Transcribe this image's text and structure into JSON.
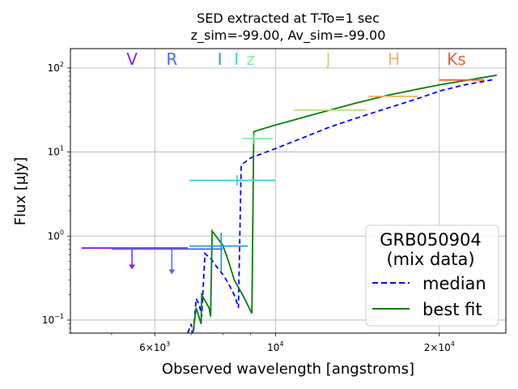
{
  "chart_data": {
    "type": "line",
    "title_line1": "SED extracted at T-To=1 sec",
    "title_line2": "z_sim=-99.00, Av_sim=-99.00",
    "xlabel": "Observed wavelength [angstroms]",
    "ylabel": "Flux [μJy]",
    "xscale": "log",
    "yscale": "log",
    "xlim": [
      4200,
      26500
    ],
    "ylim": [
      0.07,
      170
    ],
    "grid": true,
    "x_ticks": [
      {
        "value": 6000,
        "label": "6×10",
        "exp": "3"
      },
      {
        "value": 10000,
        "label": "10",
        "exp": "4"
      },
      {
        "value": 20000,
        "label": "2×10",
        "exp": "4"
      }
    ],
    "y_ticks": [
      {
        "value": 0.1,
        "label": "10",
        "exp": "−1"
      },
      {
        "value": 1,
        "label": "10",
        "exp": "0"
      },
      {
        "value": 10,
        "label": "10",
        "exp": "1"
      },
      {
        "value": 100,
        "label": "10",
        "exp": "2"
      }
    ],
    "bands": [
      {
        "name": "V",
        "x": 5450,
        "color": "#8a1ee6"
      },
      {
        "name": "R",
        "x": 6450,
        "color": "#4a6cf0"
      },
      {
        "name": "I",
        "x": 7900,
        "color": "#1aa0d8"
      },
      {
        "name": "I",
        "x": 8480,
        "color": "#3fd4c8"
      },
      {
        "name": "z",
        "x": 9000,
        "color": "#7ef0a8"
      },
      {
        "name": "J",
        "x": 12500,
        "color": "#b8e07a"
      },
      {
        "name": "H",
        "x": 16500,
        "color": "#f0b070"
      },
      {
        "name": "Ks",
        "x": 21500,
        "color": "#e8603a"
      }
    ],
    "upper_limits": [
      {
        "x": 5450,
        "xerr": [
          4400,
          6900
        ],
        "y": 0.72,
        "y_arrow_end": 0.4,
        "color": "#8a1ee6"
      },
      {
        "x": 6450,
        "xerr": [
          5000,
          8000
        ],
        "y": 0.7,
        "y_arrow_end": 0.35,
        "color": "#4a6cf0"
      }
    ],
    "detections": [
      {
        "x": 7950,
        "xerr": [
          6950,
          8900
        ],
        "y": 0.76,
        "yerr": [
          0.37,
          1.1
        ],
        "color": "#1aa0d8"
      },
      {
        "x": 8500,
        "xerr": [
          6950,
          10000
        ],
        "y": 4.6,
        "yerr": [
          4.0,
          5.3
        ],
        "color": "#3fd4c8"
      },
      {
        "x": 9100,
        "xerr": [
          8700,
          9900
        ],
        "y": 14.5,
        "yerr": [
          12.5,
          16.5
        ],
        "color": "#7ef0a8"
      },
      {
        "x": 12500,
        "xerr": [
          10800,
          14700
        ],
        "y": 31.5,
        "yerr": [
          31.5,
          31.5
        ],
        "color": "#b8e07a"
      },
      {
        "x": 16500,
        "xerr": [
          14800,
          18300
        ],
        "y": 46,
        "yerr": [
          46,
          46
        ],
        "color": "#f0b070"
      },
      {
        "x": 21500,
        "xerr": [
          20000,
          24200
        ],
        "y": 72,
        "yerr": [
          72,
          72
        ],
        "color": "#e8603a"
      }
    ],
    "legend": {
      "title_line1": "GRB050904",
      "title_line2": "(mix data)",
      "position": "lower-right",
      "entries": [
        {
          "label": "median",
          "style": "dashed",
          "color": "#0000ff"
        },
        {
          "label": "best fit",
          "style": "solid",
          "color": "#008000"
        }
      ]
    },
    "series": [
      {
        "name": "median",
        "color": "#0000ff",
        "style": "dashed",
        "points": [
          [
            6900,
            0.07
          ],
          [
            7000,
            0.09
          ],
          [
            7050,
            0.06
          ],
          [
            7150,
            0.18
          ],
          [
            7250,
            0.15
          ],
          [
            7320,
            0.11
          ],
          [
            7420,
            0.62
          ],
          [
            7600,
            0.54
          ],
          [
            7800,
            0.43
          ],
          [
            8000,
            0.35
          ],
          [
            8200,
            0.27
          ],
          [
            8400,
            0.2
          ],
          [
            8500,
            0.16
          ],
          [
            8550,
            0.14
          ],
          [
            8650,
            7.0
          ],
          [
            9000,
            8.5
          ],
          [
            10000,
            11.0
          ],
          [
            11000,
            14.0
          ],
          [
            12500,
            19.5
          ],
          [
            14000,
            25.0
          ],
          [
            16000,
            33.0
          ],
          [
            18000,
            42.0
          ],
          [
            20000,
            53.0
          ],
          [
            22000,
            62.0
          ],
          [
            25200,
            73.0
          ]
        ]
      },
      {
        "name": "best fit",
        "color": "#008000",
        "style": "solid",
        "points": [
          [
            7050,
            0.07
          ],
          [
            7150,
            0.14
          ],
          [
            7300,
            0.09
          ],
          [
            7320,
            0.2
          ],
          [
            7550,
            0.14
          ],
          [
            7600,
            0.11
          ],
          [
            7650,
            1.15
          ],
          [
            8000,
            0.78
          ],
          [
            8200,
            0.5
          ],
          [
            8400,
            0.3
          ],
          [
            8700,
            0.2
          ],
          [
            9050,
            0.12
          ],
          [
            9120,
            17.5
          ],
          [
            10000,
            21.0
          ],
          [
            12000,
            29.0
          ],
          [
            14000,
            38.0
          ],
          [
            16000,
            47.0
          ],
          [
            18000,
            55.0
          ],
          [
            20000,
            63.0
          ],
          [
            22000,
            70.0
          ],
          [
            25500,
            82.0
          ]
        ]
      }
    ]
  }
}
